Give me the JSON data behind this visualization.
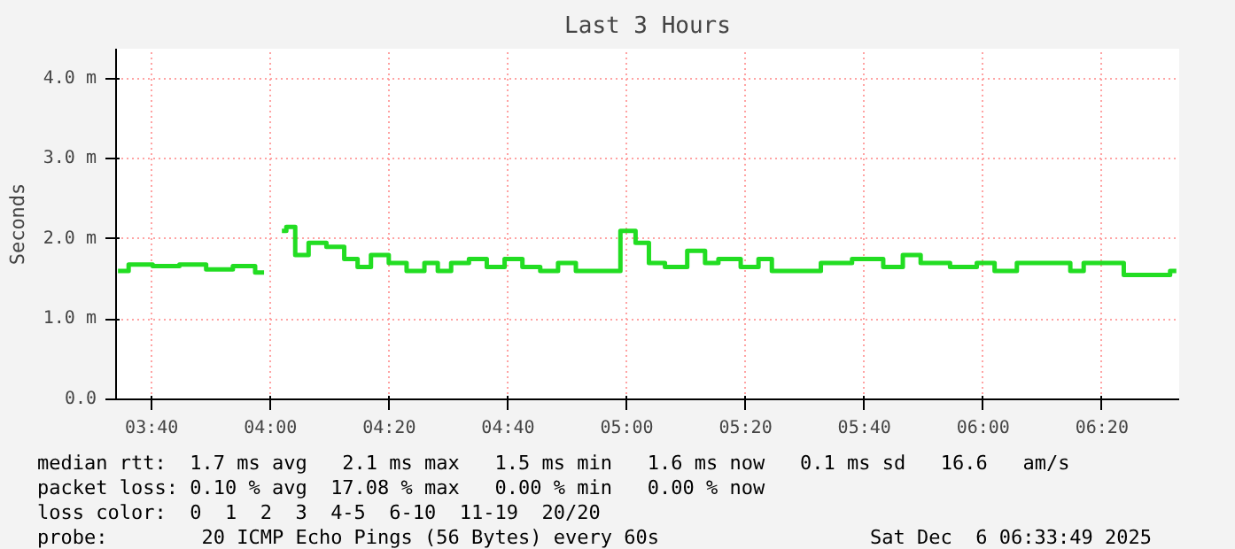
{
  "chart_data": {
    "type": "step",
    "title": "Last 3 Hours",
    "ylabel": "Seconds",
    "x": [
      3.572,
      3.632,
      3.707,
      3.782,
      3.857,
      3.932,
      3.982,
      4.0,
      4.032,
      4.057,
      4.082,
      4.132,
      4.182,
      4.232,
      4.257,
      4.307,
      4.357,
      4.407,
      4.457,
      4.482,
      4.532,
      4.582,
      4.632,
      4.682,
      4.732,
      4.782,
      4.832,
      4.882,
      4.957,
      5.007,
      5.042,
      5.082,
      5.132,
      5.207,
      5.232,
      5.282,
      5.357,
      5.382,
      5.432,
      5.507,
      5.582,
      5.682,
      5.757,
      5.792,
      5.857,
      5.957,
      6.007,
      6.057,
      6.132,
      6.232,
      6.257,
      6.307,
      6.382,
      6.407,
      6.507,
      6.542
    ],
    "series": [
      {
        "color": "#22dd22",
        "values": [
          1.6,
          1.68,
          1.66,
          1.68,
          1.62,
          1.66,
          1.58,
          null,
          2.1,
          2.15,
          1.8,
          1.95,
          1.9,
          1.75,
          1.65,
          1.8,
          1.7,
          1.6,
          1.7,
          1.6,
          1.7,
          1.75,
          1.65,
          1.75,
          1.65,
          1.6,
          1.7,
          1.6,
          1.6,
          2.1,
          1.95,
          1.7,
          1.65,
          1.85,
          1.7,
          1.75,
          1.65,
          1.75,
          1.6,
          1.6,
          1.7,
          1.75,
          1.65,
          1.8,
          1.7,
          1.65,
          1.7,
          1.6,
          1.7,
          1.7,
          1.6,
          1.7,
          1.7,
          1.55,
          1.55,
          1.6
        ]
      }
    ],
    "xlim": [
      3.5667,
      6.55
    ],
    "xticks": [
      {
        "value": 3.6667,
        "label": "03:40"
      },
      {
        "value": 4.0,
        "label": "04:00"
      },
      {
        "value": 4.3333,
        "label": "04:20"
      },
      {
        "value": 4.6667,
        "label": "04:40"
      },
      {
        "value": 5.0,
        "label": "05:00"
      },
      {
        "value": 5.3333,
        "label": "05:20"
      },
      {
        "value": 5.6667,
        "label": "05:40"
      },
      {
        "value": 6.0,
        "label": "06:00"
      },
      {
        "value": 6.3333,
        "label": "06:20"
      }
    ],
    "ylim": [
      0,
      4.37
    ],
    "yticks": [
      {
        "value": 0,
        "label": "0.0"
      },
      {
        "value": 1,
        "label": "1.0 m"
      },
      {
        "value": 2,
        "label": "2.0 m"
      },
      {
        "value": 3,
        "label": "3.0 m"
      },
      {
        "value": 4,
        "label": "4.0 m"
      }
    ],
    "grid": true,
    "annotations": [
      "median rtt:  1.7 ms avg   2.1 ms max   1.5 ms min   1.6 ms now   0.1 ms sd   16.6   am/s",
      "packet loss: 0.10 % avg  17.08 % max   0.00 % min   0.00 % now",
      "loss color:  0  1  2  3  4-5  6-10  11-19  20/20",
      "probe:        20 ICMP Echo Pings (56 Bytes) every 60s",
      "Sat Dec  6 06:33:49 2025"
    ]
  }
}
